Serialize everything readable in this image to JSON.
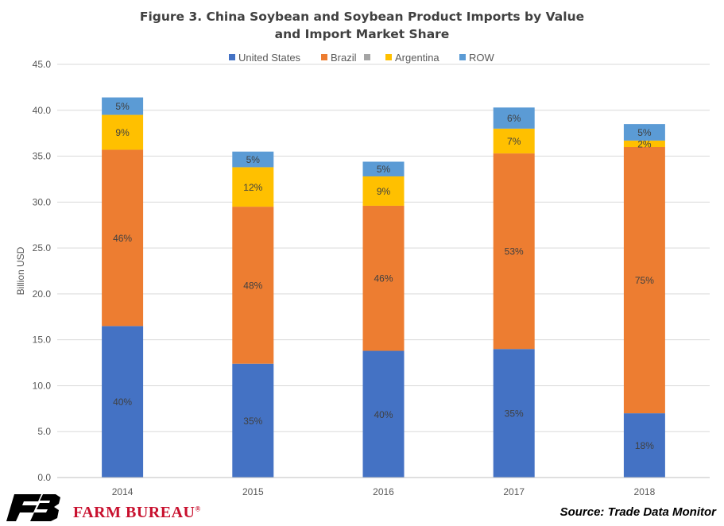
{
  "chart_data": {
    "type": "bar",
    "stacked": true,
    "title": [
      "Figure 3. China Soybean and Soybean Product Imports by Value",
      "and Import Market Share"
    ],
    "ylabel": "Billion USD",
    "xlabel": "",
    "ylim": [
      0,
      45
    ],
    "yticks": [
      "0.0",
      "5.0",
      "10.0",
      "15.0",
      "20.0",
      "25.0",
      "30.0",
      "35.0",
      "40.0",
      "45.0"
    ],
    "grid": true,
    "legend_position": "top",
    "categories": [
      "2014",
      "2015",
      "2016",
      "2017",
      "2018"
    ],
    "series": [
      {
        "name": "United States",
        "color": "#4472c4",
        "values": [
          16.5,
          12.4,
          13.8,
          14.0,
          7.0
        ],
        "labels": [
          "40%",
          "35%",
          "40%",
          "35%",
          "18%"
        ]
      },
      {
        "name": "Brazil",
        "color": "#ed7d31",
        "values": [
          19.2,
          17.1,
          15.8,
          21.3,
          29.0
        ],
        "labels": [
          "46%",
          "48%",
          "46%",
          "53%",
          "75%"
        ]
      },
      {
        "name": "",
        "color": "#a5a5a5",
        "values": [
          0,
          0,
          0,
          0,
          0
        ],
        "labels": [
          "",
          "",
          "",
          "",
          ""
        ]
      },
      {
        "name": "Argentina",
        "color": "#ffc000",
        "values": [
          3.8,
          4.3,
          3.2,
          2.7,
          0.7
        ],
        "labels": [
          "9%",
          "12%",
          "9%",
          "7%",
          "2%"
        ]
      },
      {
        "name": "ROW",
        "color": "#5b9bd5",
        "values": [
          1.9,
          1.7,
          1.6,
          2.3,
          1.8
        ],
        "labels": [
          "5%",
          "5%",
          "5%",
          "6%",
          "5%"
        ]
      }
    ]
  },
  "footer": {
    "logo_text": "FARM BUREAU",
    "logo_mark": "®",
    "source": "Source: Trade Data Monitor"
  }
}
